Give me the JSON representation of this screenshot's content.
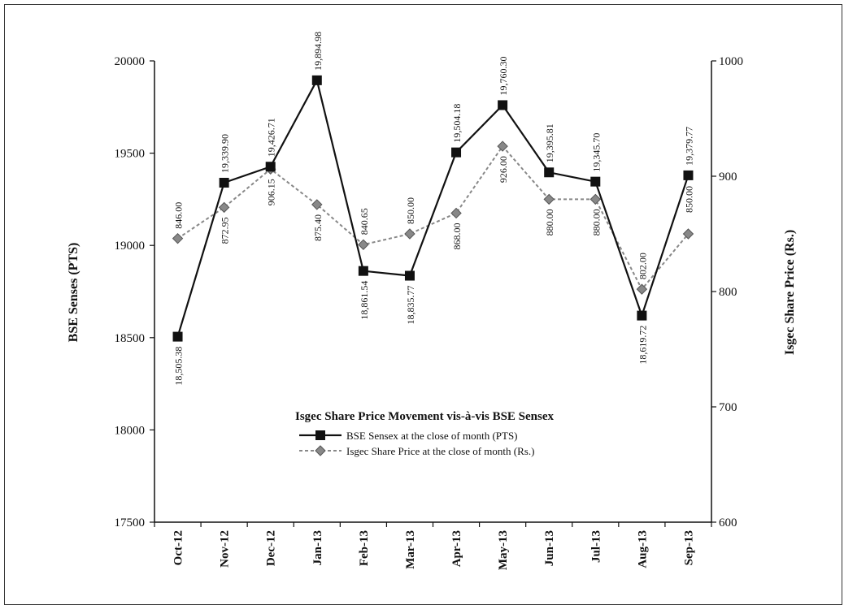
{
  "chart_data": {
    "type": "line",
    "title": "Isgec Share Price Movement vis-à-vis BSE Sensex",
    "categories": [
      "Oct-12",
      "Nov-12",
      "Dec-12",
      "Jan-13",
      "Feb-13",
      "Mar-13",
      "Apr-13",
      "May-13",
      "Jun-13",
      "Jul-13",
      "Aug-13",
      "Sep-13"
    ],
    "y_left": {
      "label": "BSE Senses (PTS)",
      "range": [
        17500,
        20000
      ],
      "ticks": [
        17500,
        18000,
        18500,
        19000,
        19500,
        20000
      ]
    },
    "y_right": {
      "label": "Isgec Share Price (Rs.)",
      "range": [
        600,
        1000
      ],
      "ticks": [
        600,
        700,
        800,
        900,
        1000
      ]
    },
    "series": [
      {
        "name": "BSE Sensex at the close of month (PTS)",
        "axis": "left",
        "marker": "square",
        "color": "#111111",
        "style": "solid",
        "values": [
          18505.38,
          19339.9,
          19426.71,
          19894.98,
          18861.54,
          18835.77,
          19504.18,
          19760.3,
          19395.81,
          19345.7,
          18619.72,
          19379.77
        ],
        "labels": [
          "18,505.38",
          "19,339.90",
          "19,426.71",
          "19,894.98",
          "18,861.54",
          "18,835.77",
          "19,504.18",
          "19,760.30",
          "19,395.81",
          "19,345.70",
          "18,619.72",
          "19,379.77"
        ]
      },
      {
        "name": "Isgec Share Price at the close of month (Rs.)",
        "axis": "right",
        "marker": "diamond",
        "color": "#888888",
        "style": "dashed",
        "values": [
          846.0,
          872.95,
          906.15,
          875.4,
          840.65,
          850.0,
          868.0,
          926.0,
          880.0,
          880.0,
          802.0,
          850.0
        ],
        "labels": [
          "846.00",
          "872.95",
          "906.15",
          "875.40",
          "840.65",
          "850.00",
          "868.00",
          "926.00",
          "880.00",
          "880.00",
          "802.00",
          "850.00"
        ]
      }
    ],
    "legend": "center",
    "grid": false
  }
}
